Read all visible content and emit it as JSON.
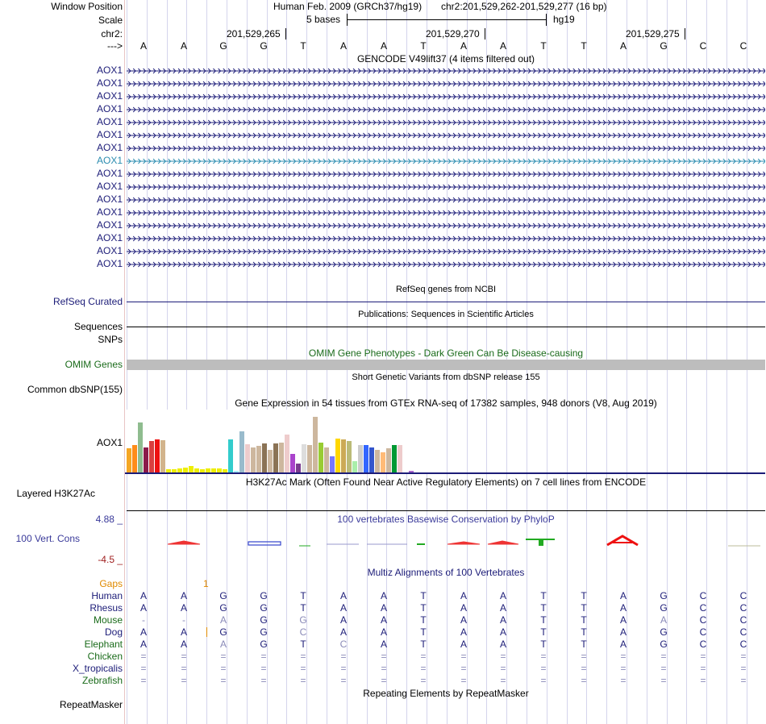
{
  "header": {
    "window_position_label": "Window Position",
    "assembly": "Human Feb. 2009 (GRCh37/hg19)",
    "position": "chr2:201,529,262-201,529,277 (16 bp)",
    "scale_label": "Scale",
    "scale_text": "5 bases",
    "db": "hg19",
    "chrom_label": "chr2:",
    "strand_label": "--->",
    "coords": [
      "201,529,265",
      "201,529,270",
      "201,529,275"
    ]
  },
  "sequence": [
    "A",
    "A",
    "G",
    "G",
    "T",
    "A",
    "A",
    "T",
    "A",
    "A",
    "T",
    "T",
    "A",
    "G",
    "C",
    "C"
  ],
  "gencode": {
    "title": "GENCODE V49lift37 (4 items filtered out)",
    "genes": [
      "AOX1",
      "AOX1",
      "AOX1",
      "AOX1",
      "AOX1",
      "AOX1",
      "AOX1",
      "AOX1",
      "AOX1",
      "AOX1",
      "AOX1",
      "AOX1",
      "AOX1",
      "AOX1",
      "AOX1",
      "AOX1"
    ],
    "highlight_index": 7
  },
  "refseq": {
    "title": "RefSeq genes from NCBI",
    "label": "RefSeq Curated"
  },
  "publications": {
    "title": "Publications: Sequences in Scientific Articles",
    "label_line1": "Sequences",
    "label_line2": "SNPs"
  },
  "omim": {
    "title": "OMIM Gene Phenotypes - Dark Green Can Be Disease-causing",
    "label": "OMIM Genes"
  },
  "dbsnp": {
    "title": "Short Genetic Variants from dbSNP release 155",
    "label": "Common dbSNP(155)"
  },
  "gtex": {
    "title": "Gene Expression in 54 tissues from GTEx RNA-seq of 17382 samples, 948 donors (V8, Aug 2019)",
    "label": "AOX1",
    "bars": [
      {
        "h": 0.38,
        "c": "#f5a623"
      },
      {
        "h": 0.44,
        "c": "#ff8c1a"
      },
      {
        "h": 0.8,
        "c": "#8fbc8f"
      },
      {
        "h": 0.4,
        "c": "#8b1a4a"
      },
      {
        "h": 0.5,
        "c": "#d94040"
      },
      {
        "h": 0.52,
        "c": "#ee1111"
      },
      {
        "h": 0.51,
        "c": "#d2b48c"
      },
      {
        "h": 0.05,
        "c": "#eeee00"
      },
      {
        "h": 0.05,
        "c": "#eeee00"
      },
      {
        "h": 0.06,
        "c": "#eeee00"
      },
      {
        "h": 0.08,
        "c": "#eeee00"
      },
      {
        "h": 0.1,
        "c": "#eeee00"
      },
      {
        "h": 0.06,
        "c": "#eeee00"
      },
      {
        "h": 0.05,
        "c": "#eeee00"
      },
      {
        "h": 0.06,
        "c": "#eeee00"
      },
      {
        "h": 0.06,
        "c": "#eeee00"
      },
      {
        "h": 0.07,
        "c": "#eeee00"
      },
      {
        "h": 0.05,
        "c": "#eeee00"
      },
      {
        "h": 0.53,
        "c": "#33cccc"
      },
      {
        "h": 0.02,
        "c": "#aaeeff"
      },
      {
        "h": 0.65,
        "c": "#99bbcc"
      },
      {
        "h": 0.45,
        "c": "#eecccc"
      },
      {
        "h": 0.4,
        "c": "#cdb79e"
      },
      {
        "h": 0.42,
        "c": "#cdb79e"
      },
      {
        "h": 0.46,
        "c": "#8b7355"
      },
      {
        "h": 0.36,
        "c": "#cdb79e"
      },
      {
        "h": 0.46,
        "c": "#8b7355"
      },
      {
        "h": 0.48,
        "c": "#cdb79e"
      },
      {
        "h": 0.6,
        "c": "#eecccc"
      },
      {
        "h": 0.3,
        "c": "#aa44cc"
      },
      {
        "h": 0.14,
        "c": "#7a3b8f"
      },
      {
        "h": 0.45,
        "c": "#dddddd"
      },
      {
        "h": 0.44,
        "c": "#cdb79e"
      },
      {
        "h": 0.88,
        "c": "#cdb79e"
      },
      {
        "h": 0.48,
        "c": "#99cc33"
      },
      {
        "h": 0.4,
        "c": "#cdb79e"
      },
      {
        "h": 0.26,
        "c": "#7777ff"
      },
      {
        "h": 0.54,
        "c": "#ffd700"
      },
      {
        "h": 0.52,
        "c": "#ccaa55"
      },
      {
        "h": 0.5,
        "c": "#bbbb77"
      },
      {
        "h": 0.18,
        "c": "#aaeeaa"
      },
      {
        "h": 0.44,
        "c": "#cccccc"
      },
      {
        "h": 0.44,
        "c": "#3366ff"
      },
      {
        "h": 0.4,
        "c": "#3355cc"
      },
      {
        "h": 0.36,
        "c": "#cdb79e"
      },
      {
        "h": 0.32,
        "c": "#ffbb77"
      },
      {
        "h": 0.38,
        "c": "#cdb79e"
      },
      {
        "h": 0.44,
        "c": "#009933"
      },
      {
        "h": 0.43,
        "c": "#eecccc"
      },
      {
        "h": 0.0,
        "c": "#ffffff"
      },
      {
        "h": 0.02,
        "c": "#aa66cc"
      }
    ]
  },
  "h3k27ac": {
    "title": "H3K27Ac Mark (Often Found Near Active Regulatory Elements) on 7 cell lines from ENCODE",
    "label": "Layered H3K27Ac"
  },
  "phylop": {
    "title": "100 vertebrates Basewise Conservation by PhyloP",
    "label": "100 Vert. Cons",
    "max": "4.88 _",
    "min": "-4.5 _"
  },
  "multiz": {
    "title": "Multiz Alignments of 100 Vertebrates",
    "gaps_label": "Gaps",
    "gaps_value": "1",
    "species": [
      {
        "name": "Human",
        "color": "#1c1c78",
        "seq": [
          "A",
          "A",
          "G",
          "G",
          "T",
          "A",
          "A",
          "T",
          "A",
          "A",
          "T",
          "T",
          "A",
          "G",
          "C",
          "C"
        ]
      },
      {
        "name": "Rhesus",
        "color": "#1c1c78",
        "seq": [
          "A",
          "A",
          "G",
          "G",
          "T",
          "A",
          "A",
          "T",
          "A",
          "A",
          "T",
          "T",
          "A",
          "G",
          "C",
          "C"
        ]
      },
      {
        "name": "Mouse",
        "color": "#1a6b1a",
        "seq": [
          "-",
          "-",
          "A",
          "G",
          "G",
          "A",
          "A",
          "T",
          "A",
          "A",
          "T",
          "T",
          "A",
          "A",
          "C",
          "C"
        ]
      },
      {
        "name": "Dog",
        "color": "#1c1c78",
        "seq": [
          "A",
          "A",
          "G",
          "G",
          "C",
          "A",
          "A",
          "T",
          "A",
          "A",
          "T",
          "T",
          "A",
          "G",
          "C",
          "C"
        ]
      },
      {
        "name": "Elephant",
        "color": "#1a6b1a",
        "seq": [
          "A",
          "A",
          "A",
          "G",
          "T",
          "C",
          "A",
          "T",
          "A",
          "A",
          "T",
          "T",
          "A",
          "G",
          "C",
          "C"
        ]
      },
      {
        "name": "Chicken",
        "color": "#1a6b1a",
        "seq": [
          "=",
          "=",
          "=",
          "=",
          "=",
          "=",
          "=",
          "=",
          "=",
          "=",
          "=",
          "=",
          "=",
          "=",
          "=",
          "="
        ]
      },
      {
        "name": "X_tropicalis",
        "color": "#1c1c78",
        "seq": [
          "=",
          "=",
          "=",
          "=",
          "=",
          "=",
          "=",
          "=",
          "=",
          "=",
          "=",
          "=",
          "=",
          "=",
          "=",
          "="
        ]
      },
      {
        "name": "Zebrafish",
        "color": "#1a6b1a",
        "seq": [
          "=",
          "=",
          "=",
          "=",
          "=",
          "=",
          "=",
          "=",
          "=",
          "=",
          "=",
          "=",
          "=",
          "=",
          "=",
          "="
        ]
      }
    ]
  },
  "repeatmasker": {
    "title": "Repeating Elements by RepeatMasker",
    "label": "RepeatMasker"
  }
}
